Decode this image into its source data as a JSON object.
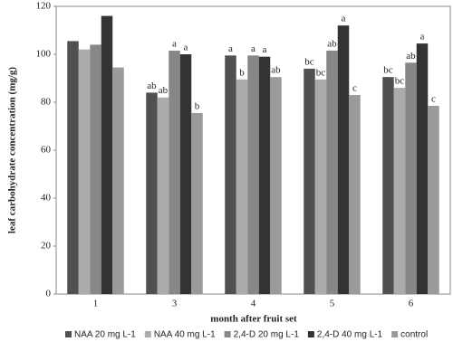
{
  "chart_data": {
    "type": "bar",
    "x_label": "month after fruit set",
    "y_label": "leaf carbohydrate concentration (mg/g)",
    "categories": [
      "1",
      "3",
      "4",
      "5",
      "6"
    ],
    "series": [
      {
        "name": "NAA 20 mg L-1",
        "color": "#505050",
        "values": [
          105.5,
          84,
          99.5,
          94,
          90.5
        ],
        "labels": [
          null,
          "ab",
          "a",
          "bc",
          "bc"
        ]
      },
      {
        "name": "NAA 40 mg L-1",
        "color": "#ababab",
        "values": [
          102,
          82,
          89.5,
          89.5,
          86
        ],
        "labels": [
          null,
          "ab",
          "b",
          "bc",
          "bc"
        ]
      },
      {
        "name": "2,4-D 20 mg L-1",
        "color": "#878787",
        "values": [
          104,
          101.5,
          99.5,
          101.5,
          96.5
        ],
        "labels": [
          null,
          "a",
          "a",
          "ab",
          "ab"
        ]
      },
      {
        "name": "2,4-D 40 mg L-1",
        "color": "#333333",
        "values": [
          116,
          100,
          99,
          112,
          104.5
        ],
        "labels": [
          null,
          "a",
          "a",
          "a",
          "a"
        ]
      },
      {
        "name": "control",
        "color": "#9a9a9a",
        "values": [
          94.5,
          75.5,
          90.5,
          83,
          78.5
        ],
        "labels": [
          null,
          "b",
          "ab",
          "c",
          "c"
        ]
      }
    ],
    "ylim": [
      0,
      120
    ],
    "yticks": [
      0,
      20,
      40,
      60,
      80,
      100,
      120
    ],
    "grid": false,
    "legend": "bottom"
  }
}
